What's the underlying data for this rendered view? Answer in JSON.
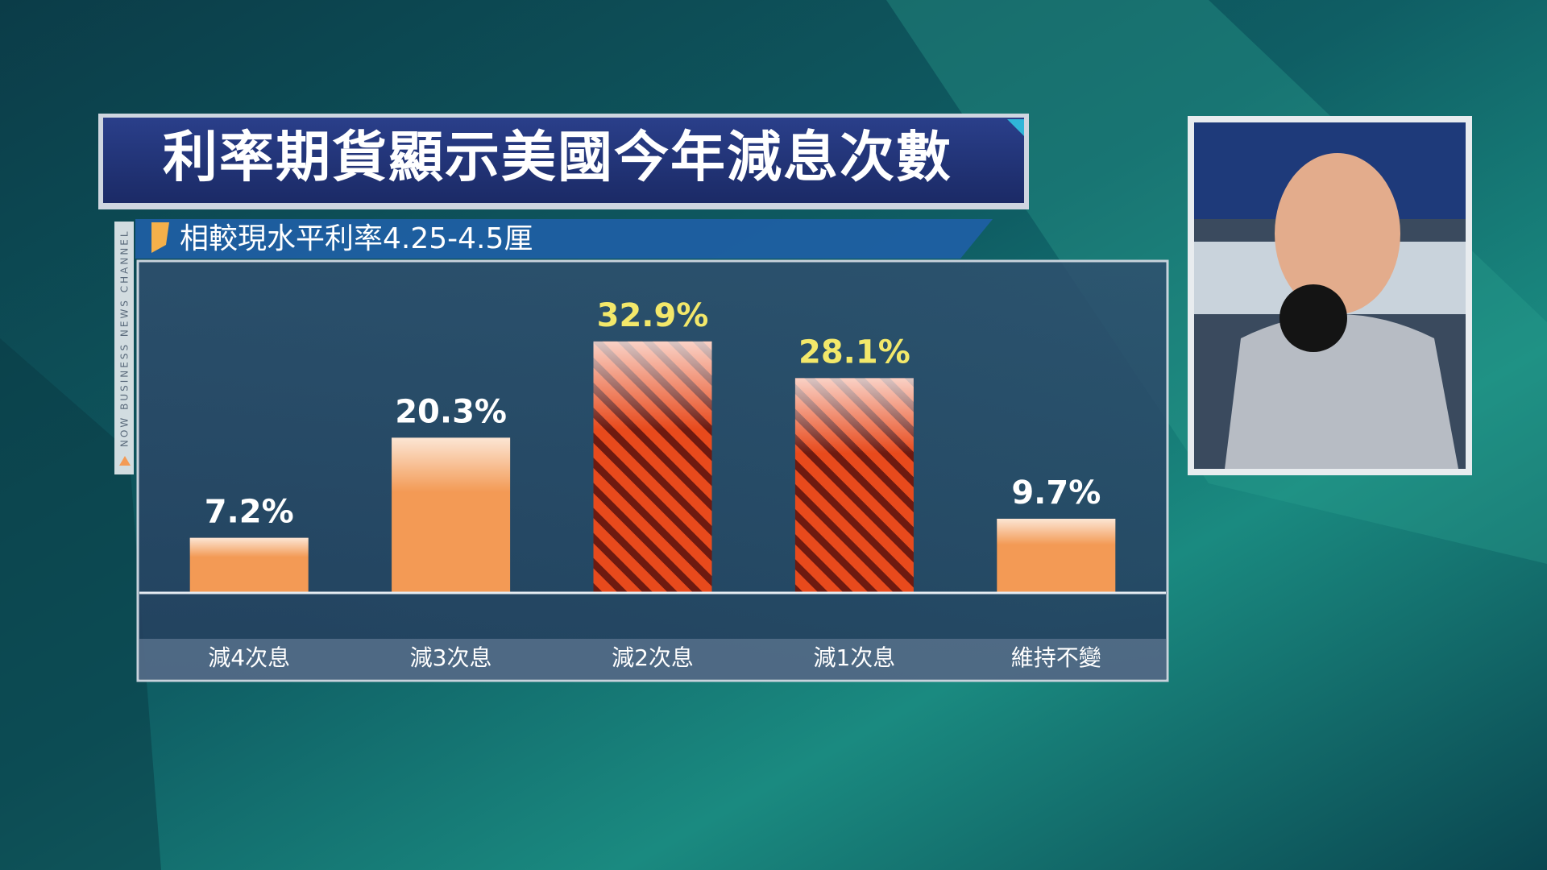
{
  "chart_data": {
    "type": "bar",
    "title": "利率期貨顯示美國今年減息次數",
    "subtitle": "相較現水平利率4.25-4.5厘",
    "channel": "NOW BUSINESS NEWS CHANNEL",
    "categories": [
      "減4次息",
      "減3次息",
      "減2次息",
      "減1次息",
      "維持不變"
    ],
    "values": [
      7.2,
      20.3,
      32.9,
      28.1,
      9.7
    ],
    "value_labels": [
      "7.2%",
      "20.3%",
      "32.9%",
      "28.1%",
      "9.7%"
    ],
    "colors": [
      "#f39a55",
      "#f39a55",
      "#e84a1c",
      "#e84a1c",
      "#f39a55"
    ],
    "hatch": [
      false,
      false,
      true,
      true,
      false
    ],
    "label_colors": [
      "#ffffff",
      "#ffffff",
      "#f3e86a",
      "#f3e86a",
      "#ffffff"
    ],
    "ylim": [
      0,
      43
    ]
  }
}
